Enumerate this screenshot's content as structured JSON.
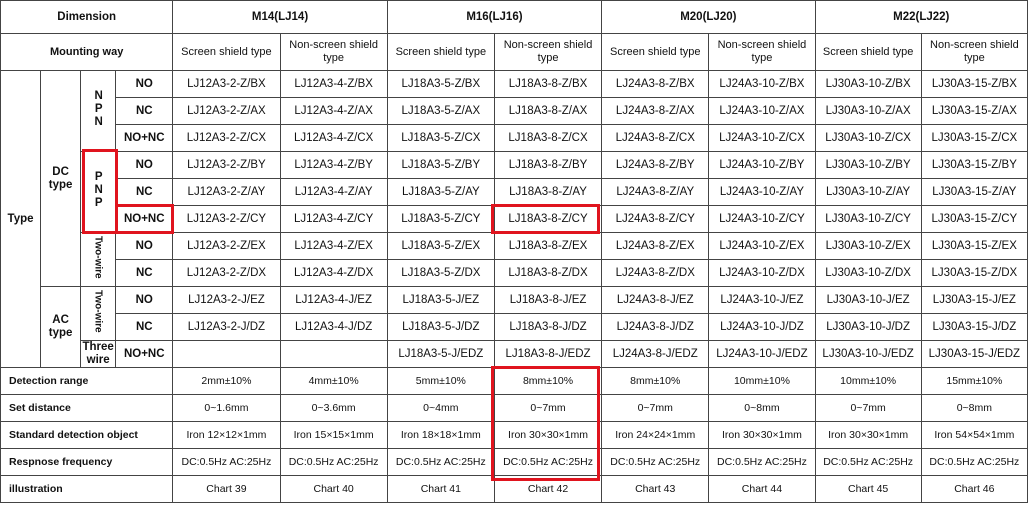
{
  "header": {
    "dimension": "Dimension",
    "groups": [
      "M14(LJ14)",
      "M16(LJ16)",
      "M20(LJ20)",
      "M22(LJ22)"
    ],
    "mounting_way": "Mounting way",
    "mounting": [
      "Screen shield type",
      "Non-screen shield type",
      "Screen shield type",
      "Non-screen shield type",
      "Screen shield type",
      "Non-screen shield type",
      "Screen shield type",
      "Non-screen shield type"
    ]
  },
  "type_label": "Type",
  "type_groups": [
    {
      "label": "DC type",
      "subgroups": [
        {
          "label": "NPN",
          "rows": [
            {
              "contact": "NO",
              "models": [
                "LJ12A3-2-Z/BX",
                "LJ12A3-4-Z/BX",
                "LJ18A3-5-Z/BX",
                "LJ18A3-8-Z/BX",
                "LJ24A3-8-Z/BX",
                "LJ24A3-10-Z/BX",
                "LJ30A3-10-Z/BX",
                "LJ30A3-15-Z/BX"
              ]
            },
            {
              "contact": "NC",
              "models": [
                "LJ12A3-2-Z/AX",
                "LJ12A3-4-Z/AX",
                "LJ18A3-5-Z/AX",
                "LJ18A3-8-Z/AX",
                "LJ24A3-8-Z/AX",
                "LJ24A3-10-Z/AX",
                "LJ30A3-10-Z/AX",
                "LJ30A3-15-Z/AX"
              ]
            },
            {
              "contact": "NO+NC",
              "models": [
                "LJ12A3-2-Z/CX",
                "LJ12A3-4-Z/CX",
                "LJ18A3-5-Z/CX",
                "LJ18A3-8-Z/CX",
                "LJ24A3-8-Z/CX",
                "LJ24A3-10-Z/CX",
                "LJ30A3-10-Z/CX",
                "LJ30A3-15-Z/CX"
              ]
            }
          ]
        },
        {
          "label": "PNP",
          "rows": [
            {
              "contact": "NO",
              "models": [
                "LJ12A3-2-Z/BY",
                "LJ12A3-4-Z/BY",
                "LJ18A3-5-Z/BY",
                "LJ18A3-8-Z/BY",
                "LJ24A3-8-Z/BY",
                "LJ24A3-10-Z/BY",
                "LJ30A3-10-Z/BY",
                "LJ30A3-15-Z/BY"
              ]
            },
            {
              "contact": "NC",
              "models": [
                "LJ12A3-2-Z/AY",
                "LJ12A3-4-Z/AY",
                "LJ18A3-5-Z/AY",
                "LJ18A3-8-Z/AY",
                "LJ24A3-8-Z/AY",
                "LJ24A3-10-Z/AY",
                "LJ30A3-10-Z/AY",
                "LJ30A3-15-Z/AY"
              ]
            },
            {
              "contact": "NO+NC",
              "models": [
                "LJ12A3-2-Z/CY",
                "LJ12A3-4-Z/CY",
                "LJ18A3-5-Z/CY",
                "LJ18A3-8-Z/CY",
                "LJ24A3-8-Z/CY",
                "LJ24A3-10-Z/CY",
                "LJ30A3-10-Z/CY",
                "LJ30A3-15-Z/CY"
              ]
            }
          ]
        },
        {
          "label": "Two-wire",
          "rows": [
            {
              "contact": "NO",
              "models": [
                "LJ12A3-2-Z/EX",
                "LJ12A3-4-Z/EX",
                "LJ18A3-5-Z/EX",
                "LJ18A3-8-Z/EX",
                "LJ24A3-8-Z/EX",
                "LJ24A3-10-Z/EX",
                "LJ30A3-10-Z/EX",
                "LJ30A3-15-Z/EX"
              ]
            },
            {
              "contact": "NC",
              "models": [
                "LJ12A3-2-Z/DX",
                "LJ12A3-4-Z/DX",
                "LJ18A3-5-Z/DX",
                "LJ18A3-8-Z/DX",
                "LJ24A3-8-Z/DX",
                "LJ24A3-10-Z/DX",
                "LJ30A3-10-Z/DX",
                "LJ30A3-15-Z/DX"
              ]
            }
          ]
        }
      ]
    },
    {
      "label": "AC type",
      "subgroups": [
        {
          "label": "Two-wire",
          "rows": [
            {
              "contact": "NO",
              "models": [
                "LJ12A3-2-J/EZ",
                "LJ12A3-4-J/EZ",
                "LJ18A3-5-J/EZ",
                "LJ18A3-8-J/EZ",
                "LJ24A3-8-J/EZ",
                "LJ24A3-10-J/EZ",
                "LJ30A3-10-J/EZ",
                "LJ30A3-15-J/EZ"
              ]
            },
            {
              "contact": "NC",
              "models": [
                "LJ12A3-2-J/DZ",
                "LJ12A3-4-J/DZ",
                "LJ18A3-5-J/DZ",
                "LJ18A3-8-J/DZ",
                "LJ24A3-8-J/DZ",
                "LJ24A3-10-J/DZ",
                "LJ30A3-10-J/DZ",
                "LJ30A3-15-J/DZ"
              ]
            }
          ]
        },
        {
          "label": "Three wire",
          "rows": [
            {
              "contact": "NO+NC",
              "models": [
                null,
                null,
                "LJ18A3-5-J/EDZ",
                "LJ18A3-8-J/EDZ",
                "LJ24A3-8-J/EDZ",
                "LJ24A3-10-J/EDZ",
                "LJ30A3-10-J/EDZ",
                "LJ30A3-15-J/EDZ"
              ]
            }
          ]
        }
      ]
    }
  ],
  "specs": [
    {
      "label": "Detection range",
      "cells": [
        "2mm±10%",
        "4mm±10%",
        "5mm±10%",
        "8mm±10%",
        "8mm±10%",
        "10mm±10%",
        "10mm±10%",
        "15mm±10%"
      ]
    },
    {
      "label": "Set distance",
      "cells": [
        "0~1.6mm",
        "0~3.6mm",
        "0~4mm",
        "0~7mm",
        "0~7mm",
        "0~8mm",
        "0~7mm",
        "0~8mm"
      ]
    },
    {
      "label": "Standard detection object",
      "cells": [
        "Iron 12×12×1mm",
        "Iron 15×15×1mm",
        "Iron 18×18×1mm",
        "Iron 30×30×1mm",
        "Iron 24×24×1mm",
        "Iron 30×30×1mm",
        "Iron 30×30×1mm",
        "Iron 54×54×1mm"
      ]
    },
    {
      "label": "Respnose frequency",
      "cells": [
        "DC:0.5Hz AC:25Hz",
        "DC:0.5Hz AC:25Hz",
        "DC:0.5Hz AC:25Hz",
        "DC:0.5Hz AC:25Hz",
        "DC:0.5Hz AC:25Hz",
        "DC:0.5Hz AC:25Hz",
        "DC:0.5Hz AC:25Hz",
        "DC:0.5Hz AC:25Hz"
      ]
    },
    {
      "label": "illustration",
      "cells": [
        "Chart 39",
        "Chart 40",
        "Chart 41",
        "Chart 42",
        "Chart 43",
        "Chart 44",
        "Chart 45",
        "Chart 46"
      ]
    }
  ]
}
